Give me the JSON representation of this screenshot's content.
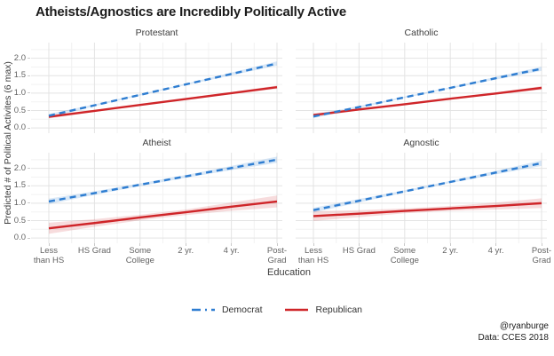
{
  "title": "Atheists/Agnostics are Incredibly Politically Active",
  "credits": {
    "handle": "@ryanburge",
    "source": "Data: CCES 2018"
  },
  "legend": [
    {
      "label": "Democrat",
      "color": "#2e7dd1",
      "band": "rgba(46,125,209,0.18)",
      "dash": true
    },
    {
      "label": "Republican",
      "color": "#cf2529",
      "band": "rgba(207,37,41,0.16)",
      "dash": false
    }
  ],
  "chart_data": {
    "type": "line",
    "title": "Atheists/Agnostics are Incredibly Politically Active",
    "xlabel": "Education",
    "ylabel": "Predicted # of Political Activites (6 max)",
    "categories": [
      "Less than HS",
      "HS Grad",
      "Some College",
      "2 yr.",
      "4 yr.",
      "Post-Grad"
    ],
    "category_label_lines": [
      [
        "Less",
        "than HS"
      ],
      [
        "HS Grad"
      ],
      [
        "Some",
        "College"
      ],
      [
        "2 yr."
      ],
      [
        "4 yr."
      ],
      [
        "Post-",
        "Grad"
      ]
    ],
    "yticks": [
      0,
      0.5,
      1,
      1.5,
      2
    ],
    "ylim": [
      -0.15,
      2.45
    ],
    "grid": true,
    "legend_position": "bottom",
    "facets": [
      {
        "label": "Protestant",
        "series": [
          {
            "name": "Democrat",
            "values": [
              0.35,
              0.65,
              0.95,
              1.25,
              1.55,
              1.85
            ],
            "ci": [
              0.05,
              0.03,
              0.02,
              0.02,
              0.04,
              0.06
            ]
          },
          {
            "name": "Republican",
            "values": [
              0.32,
              0.49,
              0.66,
              0.83,
              1.0,
              1.17
            ],
            "ci": [
              0.05,
              0.03,
              0.02,
              0.02,
              0.03,
              0.05
            ]
          }
        ]
      },
      {
        "label": "Catholic",
        "series": [
          {
            "name": "Democrat",
            "values": [
              0.33,
              0.6,
              0.88,
              1.15,
              1.43,
              1.7
            ],
            "ci": [
              0.05,
              0.03,
              0.02,
              0.02,
              0.04,
              0.06
            ]
          },
          {
            "name": "Republican",
            "values": [
              0.37,
              0.53,
              0.68,
              0.84,
              0.99,
              1.15
            ],
            "ci": [
              0.05,
              0.03,
              0.02,
              0.02,
              0.03,
              0.05
            ]
          }
        ]
      },
      {
        "label": "Atheist",
        "series": [
          {
            "name": "Democrat",
            "values": [
              1.05,
              1.29,
              1.53,
              1.77,
              2.01,
              2.25
            ],
            "ci": [
              0.08,
              0.05,
              0.04,
              0.04,
              0.06,
              0.09
            ]
          },
          {
            "name": "Republican",
            "values": [
              0.28,
              0.43,
              0.59,
              0.74,
              0.9,
              1.05
            ],
            "ci": [
              0.16,
              0.11,
              0.08,
              0.08,
              0.12,
              0.17
            ]
          }
        ]
      },
      {
        "label": "Agnostic",
        "series": [
          {
            "name": "Democrat",
            "values": [
              0.8,
              1.07,
              1.34,
              1.61,
              1.88,
              2.15
            ],
            "ci": [
              0.07,
              0.05,
              0.03,
              0.03,
              0.05,
              0.08
            ]
          },
          {
            "name": "Republican",
            "values": [
              0.63,
              0.7,
              0.78,
              0.85,
              0.92,
              1.0
            ],
            "ci": [
              0.14,
              0.1,
              0.07,
              0.07,
              0.1,
              0.14
            ]
          }
        ]
      }
    ]
  }
}
